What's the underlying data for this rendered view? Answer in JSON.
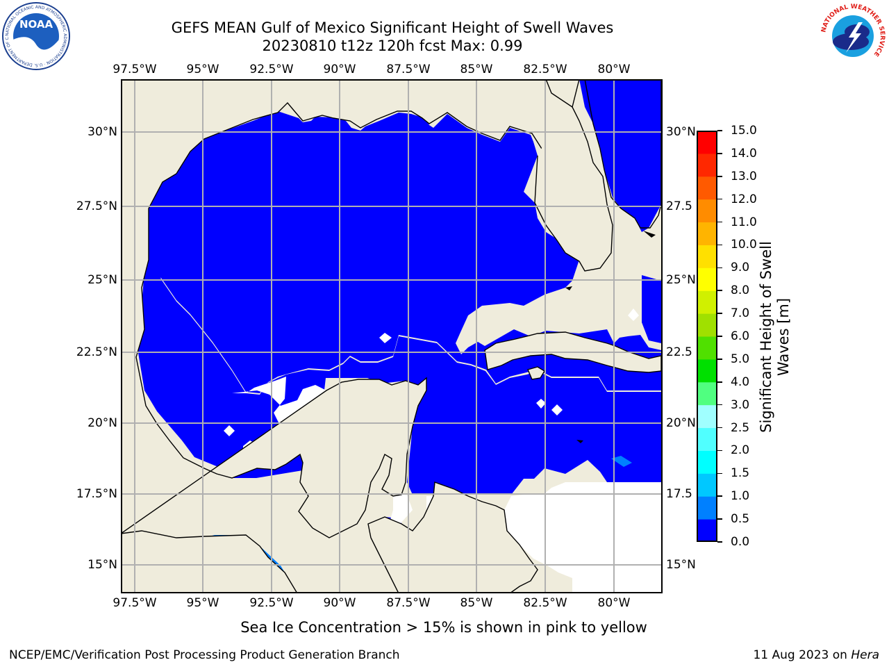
{
  "title": {
    "line1": "GEFS MEAN Gulf of Mexico Significant Height of Swell Waves",
    "line2": "20230810 t12z 120h fcst   Max: 0.99"
  },
  "map": {
    "lon_ticks": [
      "97.5°W",
      "95°W",
      "92.5°W",
      "90°W",
      "87.5°W",
      "85°W",
      "82.5°W",
      "80°W"
    ],
    "lat_ticks": [
      "30°N",
      "27.5°N",
      "25°N",
      "22.5°N",
      "20°N",
      "17.5°N",
      "15°N"
    ],
    "lat_ticks_right": [
      "30°N",
      "27.5",
      "25°N",
      "22.5",
      "20°N",
      "17.5",
      "15°N"
    ],
    "land_color": "#efecdc",
    "grid_color": "#b0b0b0"
  },
  "colorbar": {
    "label_line1": "Significant Height of Swell",
    "label_line2": "Waves [m]",
    "ticks": [
      "0.0",
      "0.5",
      "1.0",
      "1.5",
      "2.0",
      "2.5",
      "3.0",
      "4.0",
      "5.0",
      "6.0",
      "7.0",
      "8.0",
      "9.0",
      "10.0",
      "11.0",
      "12.0",
      "13.0",
      "14.0",
      "15.0"
    ],
    "colors": [
      "#0000ff",
      "#0080ff",
      "#00c8ff",
      "#00ffff",
      "#50ffff",
      "#a0ffff",
      "#50ff80",
      "#00e000",
      "#50e000",
      "#a0e000",
      "#d0f000",
      "#ffff00",
      "#ffe000",
      "#ffb400",
      "#ff8c00",
      "#ff5a00",
      "#ff2800",
      "#ff0000"
    ]
  },
  "footnote": "Sea Ice Concentration > 15% is shown in pink to yellow",
  "credit_left": "NCEP/EMC/Verification Post Processing Product Generation Branch",
  "credit_right_date": "11 Aug 2023 on ",
  "credit_right_host": "Hera",
  "logos": {
    "noaa": "NOAA",
    "noaa_ring": "NATIONAL OCEANIC AND ATMOSPHERIC ADMINISTRATION · U.S. DEPARTMENT OF COMMERCE",
    "nws_ring": "NATIONAL WEATHER SERVICE"
  }
}
